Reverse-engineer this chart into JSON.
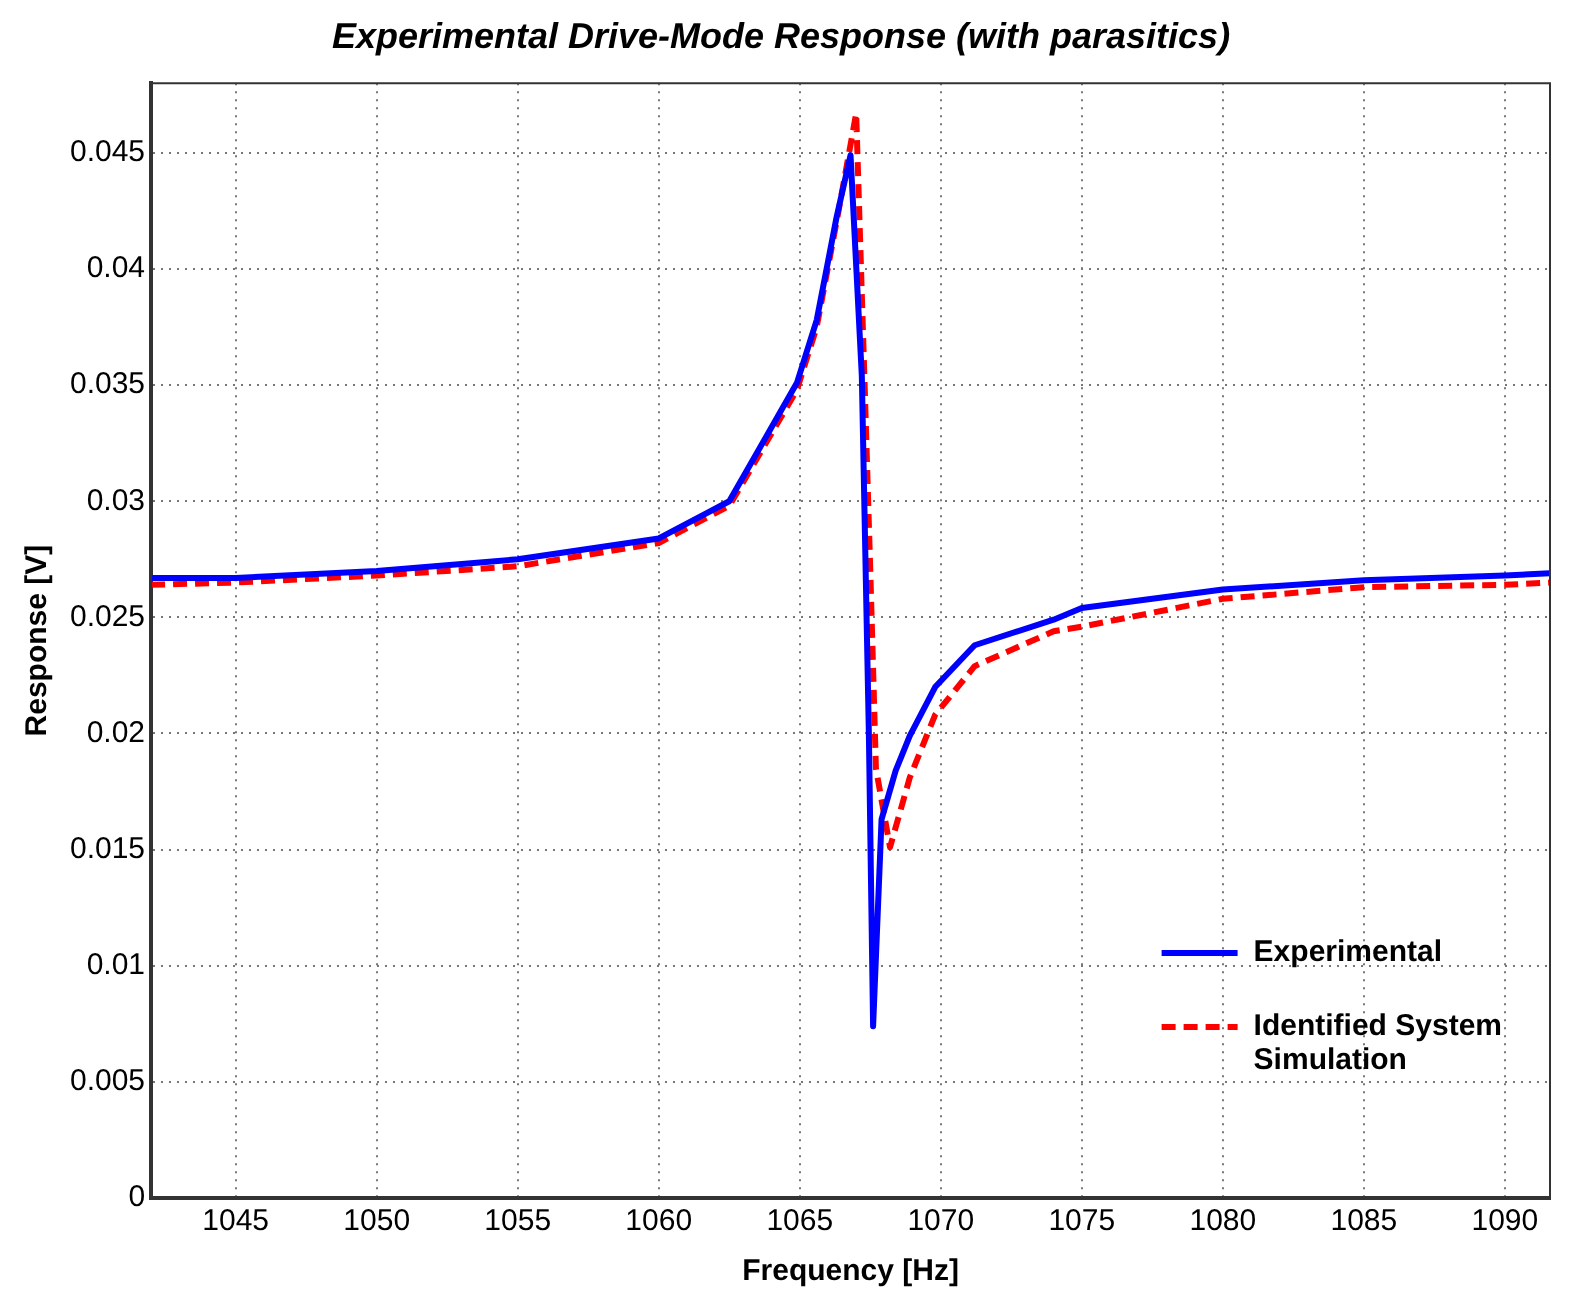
{
  "chart_data": {
    "type": "line",
    "title": "Experimental Drive-Mode Response (with parasitics)",
    "xlabel": "Frequency [Hz]",
    "ylabel": "Response [V]",
    "xlim": [
      1042,
      1091.6
    ],
    "xticks": [
      1045,
      1050,
      1055,
      1060,
      1065,
      1070,
      1075,
      1080,
      1085,
      1090
    ],
    "ylim": [
      0,
      0.048
    ],
    "yticks": [
      0,
      0.005,
      0.01,
      0.015,
      0.02,
      0.025,
      0.03,
      0.035,
      0.04,
      0.045
    ],
    "grid": true,
    "legend": "bottom right",
    "marker": "none",
    "series": [
      {
        "name": "Experimental",
        "color": "#0000ff",
        "line_style": "solid",
        "x": [
          1042,
          1045,
          1050,
          1055,
          1060,
          1062.5,
          1064.9,
          1065.6,
          1066.3,
          1066.8,
          1067.2,
          1067.45,
          1067.6,
          1067.9,
          1068.4,
          1068.9,
          1069.8,
          1071.2,
          1074,
          1075,
          1080,
          1085,
          1090,
          1091.6
        ],
        "values": [
          0.0267,
          0.0267,
          0.027,
          0.0275,
          0.0284,
          0.03,
          0.0351,
          0.0378,
          0.0422,
          0.0449,
          0.0354,
          0.02,
          0.0074,
          0.0163,
          0.0184,
          0.0199,
          0.022,
          0.0238,
          0.0249,
          0.0254,
          0.0262,
          0.0266,
          0.0268,
          0.0269
        ]
      },
      {
        "name": "Identified System Simulation",
        "color": "#ff0000",
        "line_style": "dashed",
        "x": [
          1042,
          1045,
          1050,
          1055,
          1060,
          1062.5,
          1064.9,
          1065.6,
          1066.3,
          1066.6,
          1067.0,
          1067.3,
          1067.5,
          1067.7,
          1068.2,
          1068.9,
          1069.8,
          1071.2,
          1074,
          1075,
          1080,
          1085,
          1090,
          1091.6
        ],
        "values": [
          0.0264,
          0.0265,
          0.0268,
          0.0272,
          0.0282,
          0.0298,
          0.0348,
          0.0375,
          0.042,
          0.044,
          0.0467,
          0.035,
          0.027,
          0.0185,
          0.0151,
          0.0181,
          0.0208,
          0.0229,
          0.0244,
          0.0246,
          0.0258,
          0.0263,
          0.0264,
          0.0265
        ]
      }
    ]
  }
}
